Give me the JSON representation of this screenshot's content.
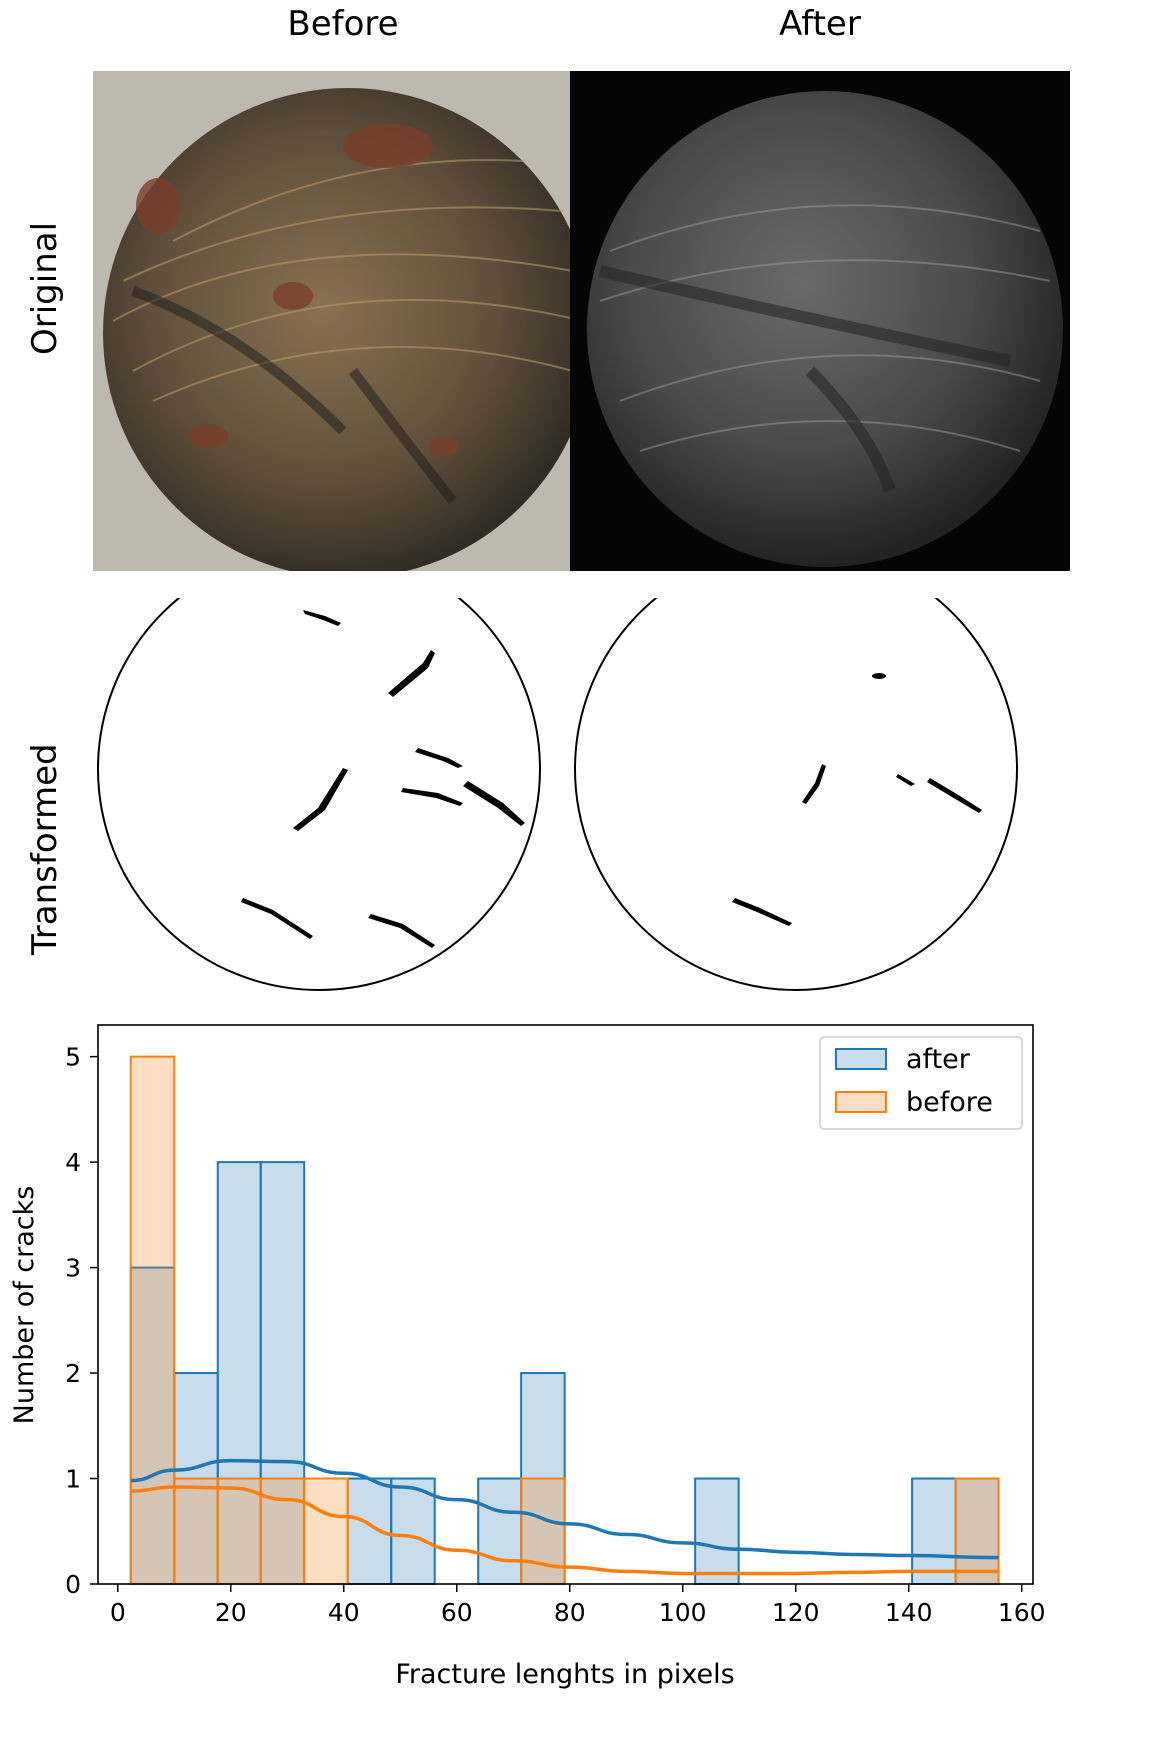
{
  "columns": [
    "Before",
    "After"
  ],
  "rows": [
    "Original",
    "Transformed"
  ],
  "chart_data": {
    "type": "bar",
    "xlabel": "Fracture lenghts in pixels",
    "ylabel": "Number of cracks",
    "xlim": [
      -3.5,
      162
    ],
    "ylim": [
      0,
      5.3
    ],
    "xticks": [
      0,
      20,
      40,
      60,
      80,
      100,
      120,
      140,
      160
    ],
    "yticks": [
      0,
      1,
      2,
      3,
      4,
      5
    ],
    "legend": {
      "position": "top-right"
    },
    "bin_edges": [
      2.3,
      10.0,
      17.7,
      25.3,
      33.0,
      40.7,
      48.4,
      56.1,
      63.8,
      71.4,
      79.1,
      86.8,
      94.5,
      102.2,
      109.9,
      117.5,
      125.2,
      132.9,
      140.6,
      148.3,
      155.9
    ],
    "series": [
      {
        "name": "after",
        "color": "#1f77b4",
        "fill": "#c5d9eb",
        "values": [
          3,
          2,
          4,
          4,
          0,
          1,
          1,
          0,
          1,
          2,
          0,
          0,
          0,
          1,
          0,
          0,
          0,
          0,
          1,
          1
        ],
        "kde_x": [
          2.3,
          10,
          20,
          30,
          40,
          50,
          60,
          70,
          80,
          90,
          100,
          110,
          120,
          130,
          140,
          155.9
        ],
        "kde_y": [
          0.98,
          1.08,
          1.17,
          1.16,
          1.05,
          0.92,
          0.8,
          0.68,
          0.57,
          0.47,
          0.39,
          0.33,
          0.3,
          0.28,
          0.27,
          0.25
        ]
      },
      {
        "name": "before",
        "color": "#ff7f0e",
        "fill": "#fdd9bd",
        "values": [
          5,
          1,
          1,
          1,
          1,
          0,
          0,
          0,
          0,
          1,
          0,
          0,
          0,
          0,
          0,
          0,
          0,
          0,
          0,
          1
        ],
        "kde_x": [
          2.3,
          10,
          20,
          30,
          40,
          50,
          60,
          70,
          80,
          90,
          100,
          110,
          120,
          130,
          140,
          155.9
        ],
        "kde_y": [
          0.88,
          0.92,
          0.91,
          0.8,
          0.64,
          0.46,
          0.32,
          0.22,
          0.16,
          0.12,
          0.1,
          0.1,
          0.1,
          0.11,
          0.12,
          0.12
        ]
      }
    ]
  }
}
